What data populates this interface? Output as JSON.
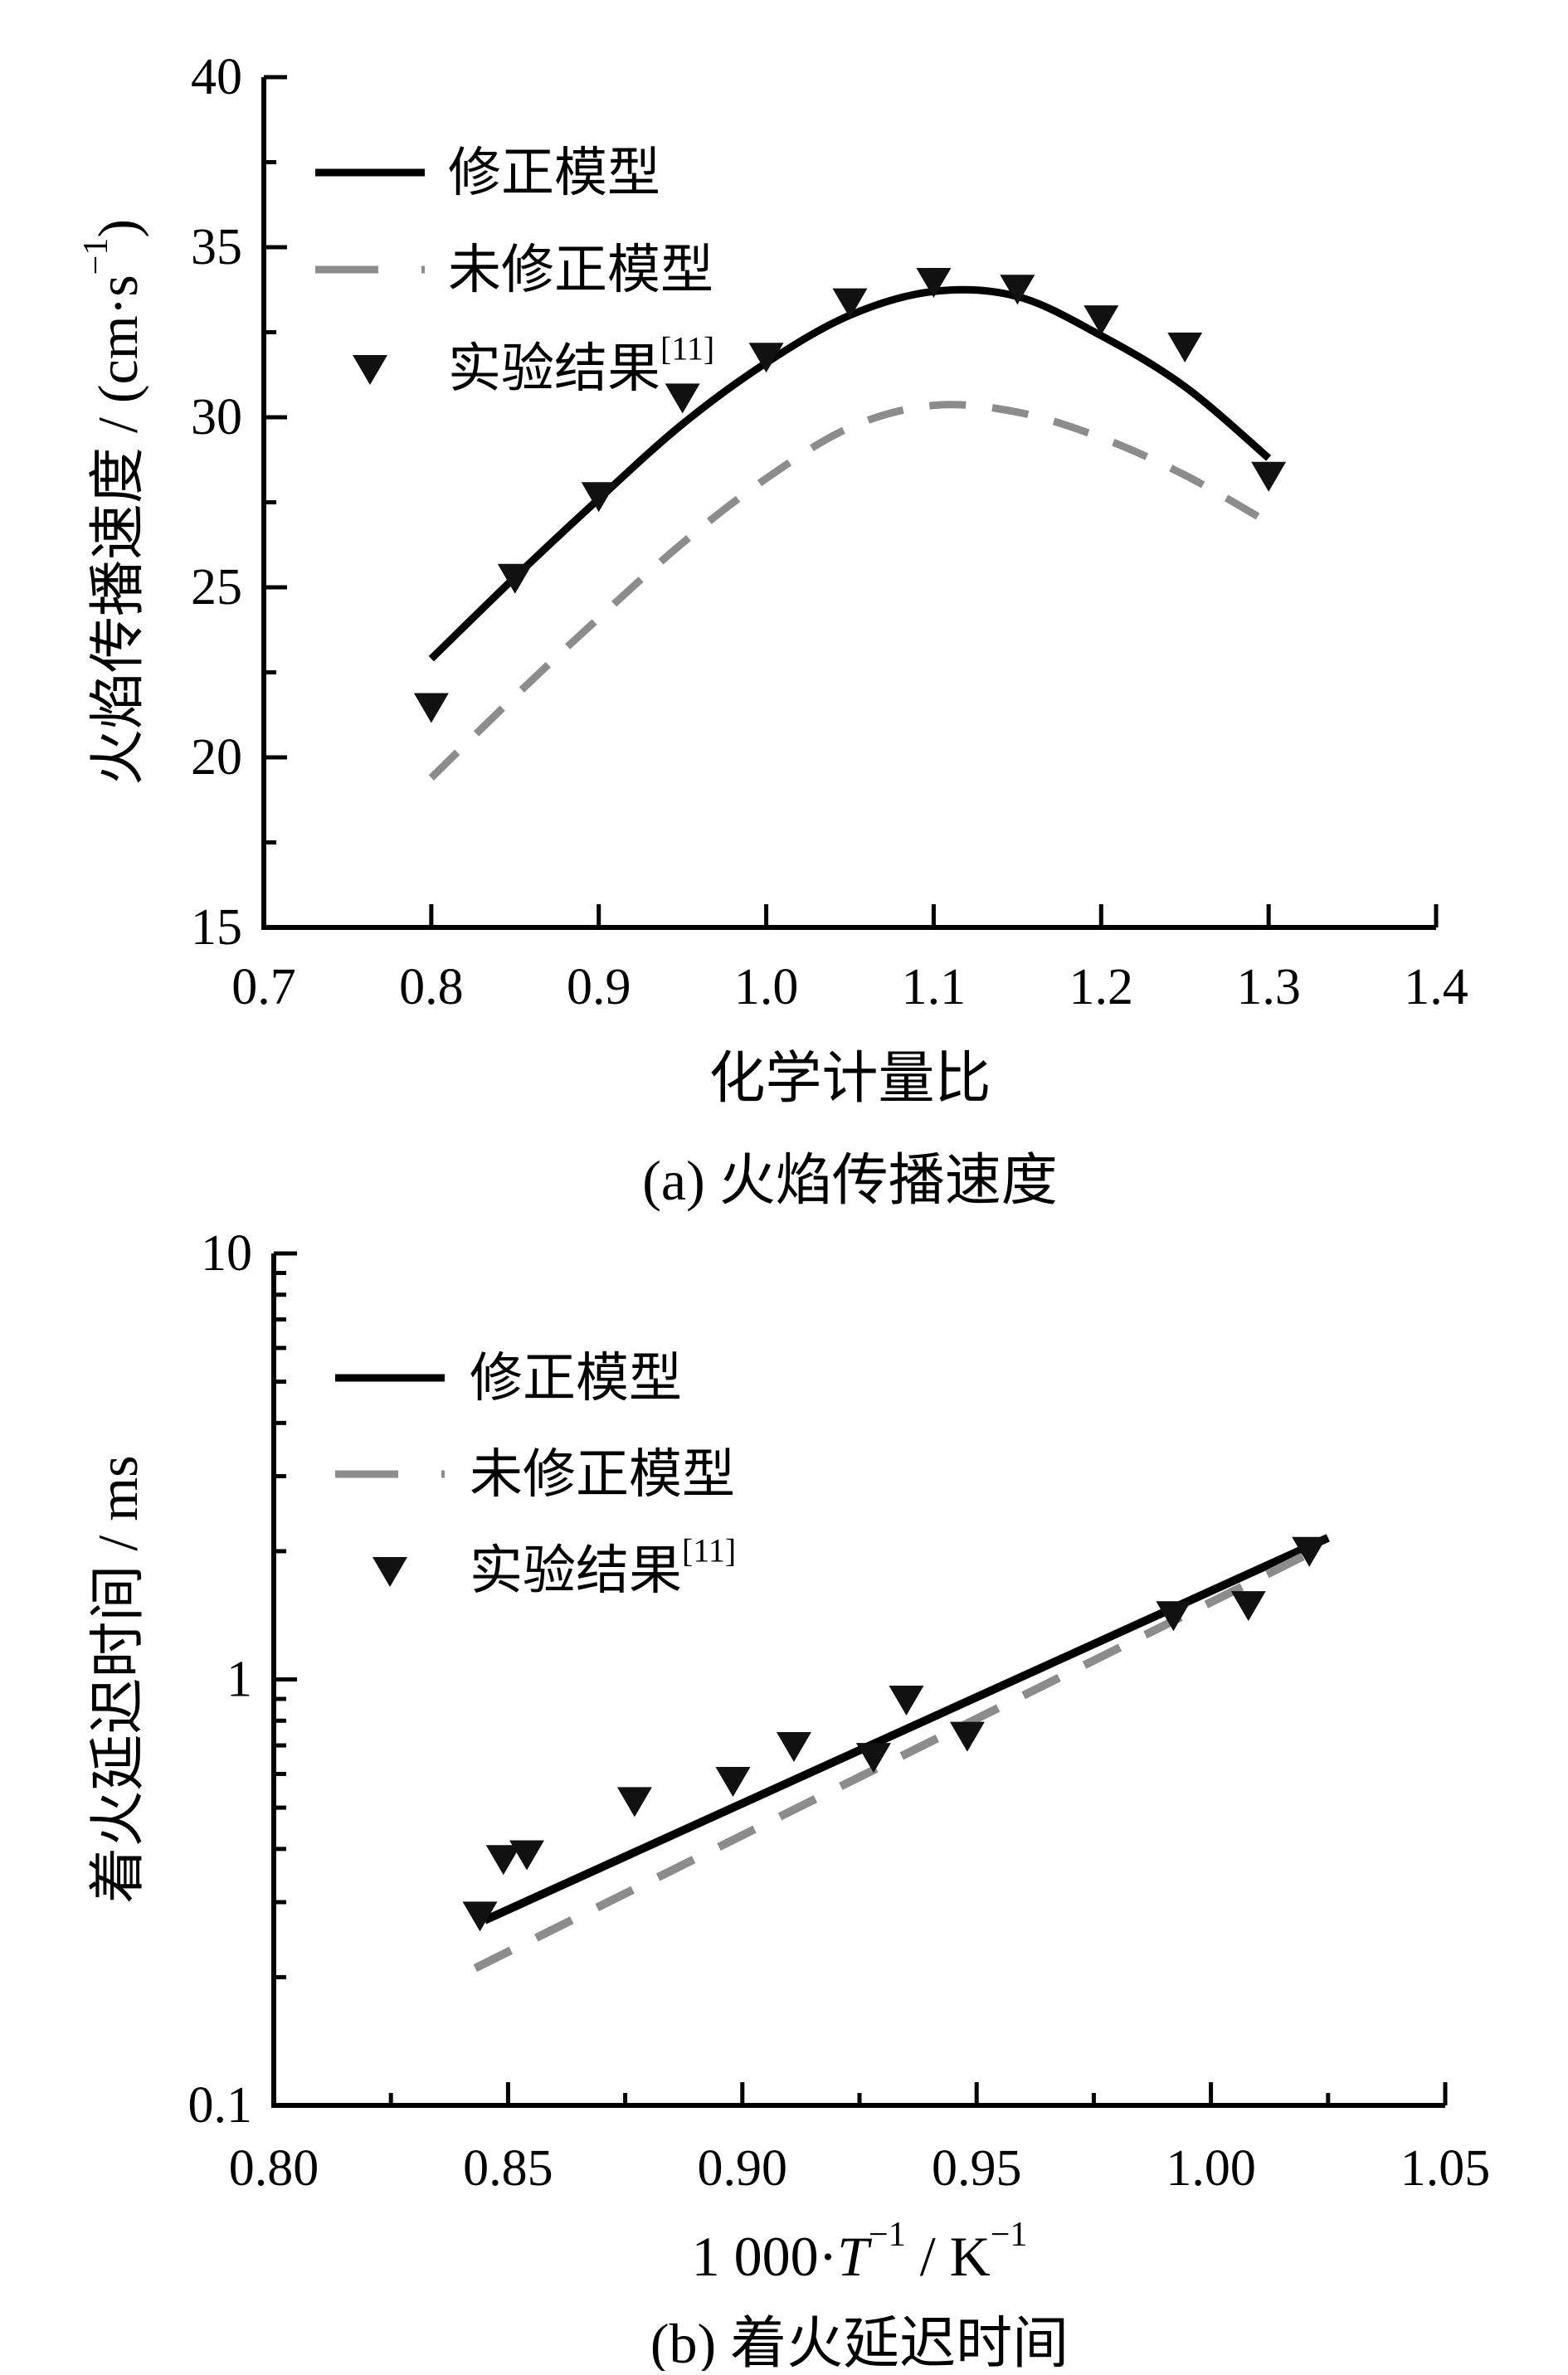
{
  "colors": {
    "background": "#ffffff",
    "axis": "#000000",
    "modified_model": "#000000",
    "unmodified_model": "#8c8c8c",
    "experiment_marker": "#111111"
  },
  "chart_data": [
    {
      "id": "a",
      "type": "line",
      "yscale": "linear",
      "caption": [
        {
          "t": "(a) 火焰传播速度"
        }
      ],
      "xlabel_parts": [
        {
          "t": "化学计量比"
        }
      ],
      "ylabel_parts": [
        {
          "t": "火焰传播速度 / (cm·s"
        },
        {
          "t": "−1",
          "sup": true
        },
        {
          "t": ")"
        }
      ],
      "xlim": [
        0.7,
        1.4
      ],
      "ylim": [
        15,
        40
      ],
      "x_tick_labels": [
        "0.7",
        "0.8",
        "0.9",
        "1.0",
        "1.1",
        "1.2",
        "1.3",
        "1.4"
      ],
      "x_tick_values": [
        0.7,
        0.8,
        0.9,
        1.0,
        1.1,
        1.2,
        1.3,
        1.4
      ],
      "y_tick_labels": [
        "15",
        "20",
        "25",
        "30",
        "35",
        "40"
      ],
      "y_tick_values": [
        15,
        20,
        25,
        30,
        35,
        40
      ],
      "y_minor_tick_values": [
        17.5,
        22.5,
        27.5,
        32.5,
        37.5
      ],
      "legend": [
        {
          "style": "solid",
          "parts": [
            {
              "t": "修正模型"
            }
          ]
        },
        {
          "style": "dashed",
          "parts": [
            {
              "t": "未修正模型"
            }
          ]
        },
        {
          "style": "marker",
          "parts": [
            {
              "t": "实验结果"
            },
            {
              "t": "[11]",
              "sup": true
            }
          ]
        }
      ],
      "series": [
        {
          "name": "修正模型",
          "style": "solid",
          "smooth": true,
          "points": [
            [
              0.8,
              22.9
            ],
            [
              0.85,
              25.3
            ],
            [
              0.9,
              27.6
            ],
            [
              0.95,
              29.8
            ],
            [
              1.0,
              31.6
            ],
            [
              1.05,
              33.0
            ],
            [
              1.1,
              33.7
            ],
            [
              1.15,
              33.55
            ],
            [
              1.2,
              32.4
            ],
            [
              1.25,
              30.9
            ],
            [
              1.3,
              28.8
            ]
          ]
        },
        {
          "name": "未修正模型",
          "style": "dashed",
          "smooth": true,
          "points": [
            [
              0.8,
              19.4
            ],
            [
              0.85,
              21.8
            ],
            [
              0.9,
              24.1
            ],
            [
              0.95,
              26.3
            ],
            [
              1.0,
              28.2
            ],
            [
              1.05,
              29.7
            ],
            [
              1.1,
              30.35
            ],
            [
              1.15,
              30.15
            ],
            [
              1.2,
              29.4
            ],
            [
              1.25,
              28.3
            ],
            [
              1.3,
              26.9
            ]
          ]
        },
        {
          "name": "实验结果[11]",
          "style": "marker",
          "points": [
            [
              0.8,
              21.5
            ],
            [
              0.85,
              25.3
            ],
            [
              0.9,
              27.7
            ],
            [
              0.95,
              30.6
            ],
            [
              1.0,
              31.8
            ],
            [
              1.05,
              33.4
            ],
            [
              1.1,
              34.0
            ],
            [
              1.15,
              33.8
            ],
            [
              1.2,
              32.9
            ],
            [
              1.25,
              32.1
            ],
            [
              1.3,
              28.3
            ]
          ]
        }
      ]
    },
    {
      "id": "b",
      "type": "line",
      "yscale": "log",
      "caption": [
        {
          "t": "(b) 着火延迟时间"
        }
      ],
      "xlabel_parts": [
        {
          "t": "1 000·"
        },
        {
          "t": "T",
          "i": true
        },
        {
          "t": "−1",
          "sup": true
        },
        {
          "t": " / K"
        },
        {
          "t": "−1",
          "sup": true
        }
      ],
      "ylabel_parts": [
        {
          "t": "着火延迟时间 / ms"
        }
      ],
      "xlim": [
        0.8,
        1.05
      ],
      "ylim": [
        0.1,
        10
      ],
      "x_tick_labels": [
        "0.80",
        "0.85",
        "0.90",
        "0.95",
        "1.00",
        "1.05"
      ],
      "x_tick_values": [
        0.8,
        0.85,
        0.9,
        0.95,
        1.0,
        1.05
      ],
      "x_minor_tick_values": [
        0.825,
        0.875,
        0.925,
        0.975,
        1.025
      ],
      "y_tick_labels": [
        "0.1",
        "1",
        "10"
      ],
      "y_tick_values": [
        0.1,
        1,
        10
      ],
      "legend": [
        {
          "style": "solid",
          "parts": [
            {
              "t": "修正模型"
            }
          ]
        },
        {
          "style": "dashed",
          "parts": [
            {
              "t": "未修正模型"
            }
          ]
        },
        {
          "style": "marker",
          "parts": [
            {
              "t": "实验结果"
            },
            {
              "t": "[11]",
              "sup": true
            }
          ]
        }
      ],
      "series": [
        {
          "name": "修正模型",
          "style": "solid",
          "smooth": false,
          "points": [
            [
              0.845,
              0.272
            ],
            [
              1.025,
              2.15
            ]
          ]
        },
        {
          "name": "未修正模型",
          "style": "dashed",
          "smooth": false,
          "points": [
            [
              0.843,
              0.21
            ],
            [
              1.025,
              2.08
            ]
          ]
        },
        {
          "name": "实验结果[11]",
          "style": "marker",
          "points": [
            [
              0.844,
              0.28
            ],
            [
              0.849,
              0.38
            ],
            [
              0.854,
              0.39
            ],
            [
              0.877,
              0.52
            ],
            [
              0.898,
              0.58
            ],
            [
              0.911,
              0.7
            ],
            [
              0.928,
              0.66
            ],
            [
              0.935,
              0.9
            ],
            [
              0.948,
              0.74
            ],
            [
              0.992,
              1.42
            ],
            [
              1.008,
              1.5
            ],
            [
              1.021,
              2.01
            ]
          ]
        }
      ]
    }
  ]
}
